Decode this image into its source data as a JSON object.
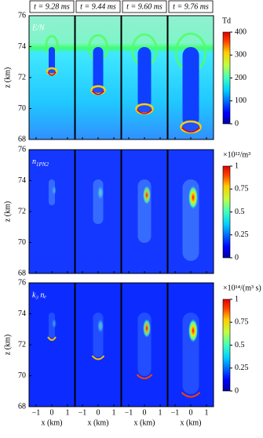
{
  "column_titles": [
    "t = 9.28 ms",
    "t = 9.44 ms",
    "t = 9.60 ms",
    "t = 9.76 ms"
  ],
  "chart_data": [
    {
      "type": "heatmap",
      "label": "E/N",
      "ylabel": "z (km)",
      "ylim": [
        68,
        76
      ],
      "yticks": [
        68,
        70,
        72,
        74,
        76
      ],
      "xlim": [
        -1.45,
        1.45
      ],
      "xticks": [
        {
          "value": -1,
          "label": "−1"
        },
        0,
        1
      ],
      "colorbar": {
        "label": "Td",
        "lim": [
          0,
          400
        ],
        "ticks": [
          0,
          100,
          200,
          300,
          400
        ]
      }
    },
    {
      "type": "heatmap",
      "label": {
        "text": "n",
        "sub": "1PN2"
      },
      "ylabel": "z (km)",
      "ylim": [
        68,
        76
      ],
      "yticks": [
        68,
        70,
        72,
        74,
        76
      ],
      "xlim": [
        -1.45,
        1.45
      ],
      "xticks": [
        {
          "value": -1,
          "label": "−1"
        },
        0,
        1
      ],
      "colorbar": {
        "label": "×10¹²/m³",
        "lim": [
          0,
          1
        ],
        "ticks": [
          0,
          0.25,
          0.5,
          0.75,
          1
        ]
      }
    },
    {
      "type": "heatmap",
      "label": "k₃ nₑ",
      "ylabel": "z (km)",
      "xlabel": "x (km)",
      "ylim": [
        68,
        76
      ],
      "yticks": [
        68,
        70,
        72,
        74,
        76
      ],
      "xlim": [
        -1.45,
        1.45
      ],
      "xticks": [
        {
          "value": -1,
          "label": "−1"
        },
        0,
        1
      ],
      "colorbar": {
        "label": "×10¹⁴/(m³ s)",
        "lim": [
          0,
          1
        ],
        "ticks": [
          0,
          0.25,
          0.5,
          0.75,
          1
        ]
      }
    }
  ]
}
